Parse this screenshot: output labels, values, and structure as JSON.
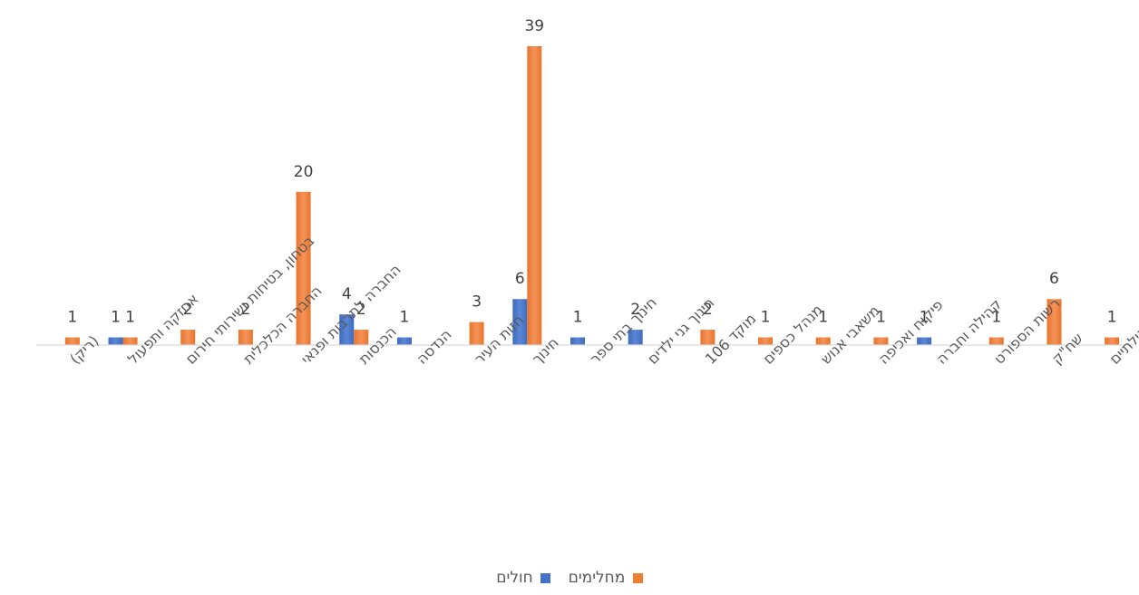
{
  "chart_data": {
    "type": "bar",
    "title": "",
    "xlabel": "",
    "ylabel": "",
    "ylim": [
      0,
      39
    ],
    "categories": [
      "(ריק)",
      "אחזקה ותפעול",
      "בטחון, בטיחות ושירותי חירום",
      "החברה הכלכלית",
      "החברה לתרבות ופנאי",
      "הכנסות",
      "הנדסה",
      "חזות העיר",
      "חינוך",
      "חינוך בתי ספר",
      "חינוך גני ילדים",
      "מוקד 106",
      "מנהל כספים",
      "משאבי אנוש",
      "פיקוח ואכיפה",
      "קהילה וחברה",
      "רשות הספורט",
      "שח\"ק",
      "שירותים חברתיים קהילתיים"
    ],
    "series": [
      {
        "name": "חולים",
        "color": "#4472C4",
        "values": [
          null,
          1,
          null,
          null,
          null,
          4,
          1,
          null,
          6,
          1,
          2,
          null,
          null,
          null,
          null,
          1,
          null,
          null,
          null
        ]
      },
      {
        "name": "מחלימים",
        "color": "#ED7D31",
        "values": [
          1,
          1,
          2,
          2,
          20,
          2,
          null,
          3,
          39,
          null,
          null,
          2,
          1,
          1,
          1,
          null,
          1,
          6,
          1
        ]
      }
    ],
    "grid": false,
    "legend_position": "bottom"
  }
}
